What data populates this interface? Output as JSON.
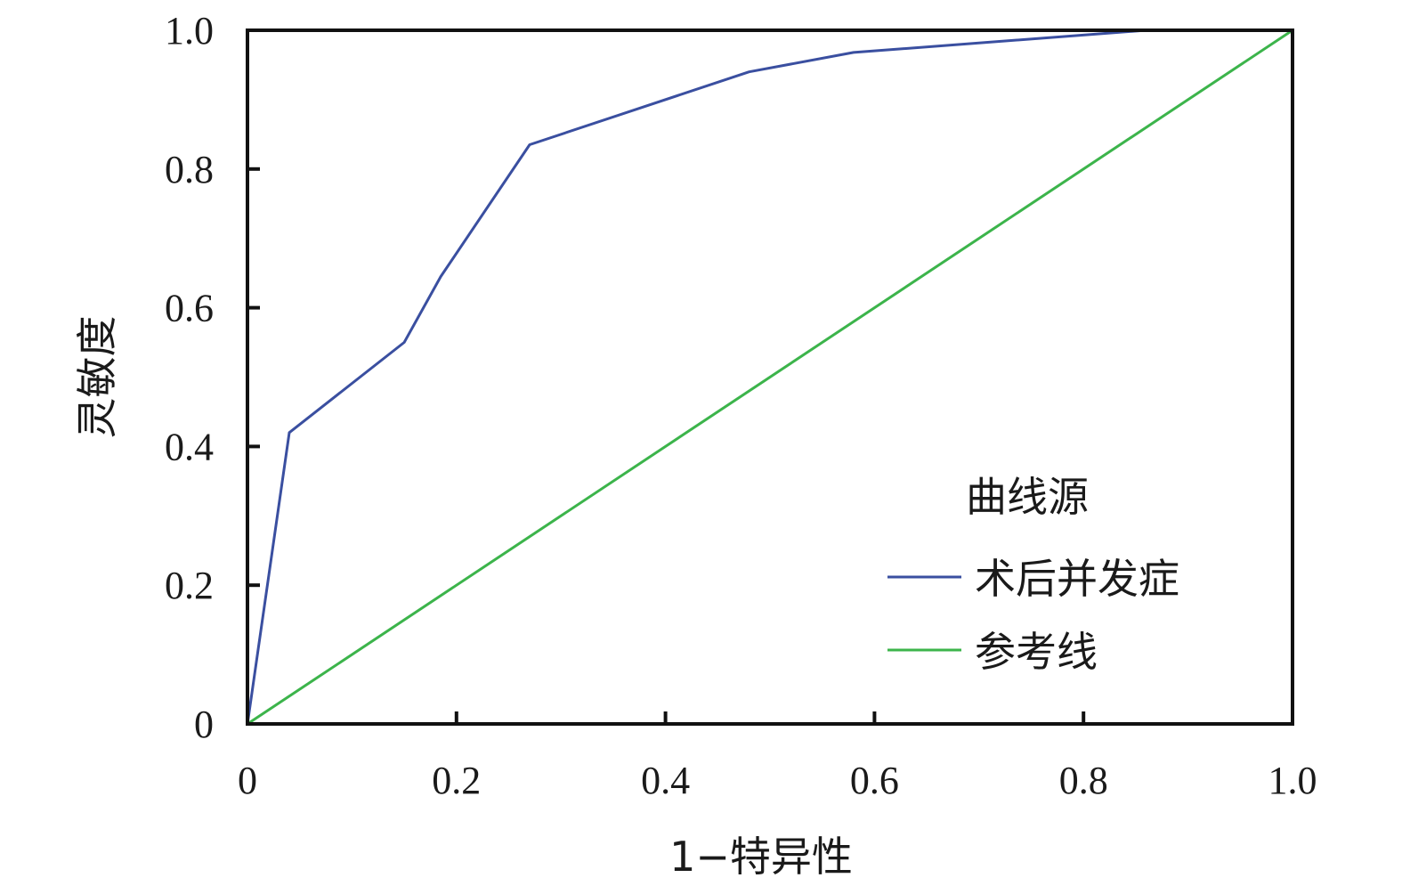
{
  "chart_data": {
    "type": "line",
    "xlabel": "1−特异性",
    "ylabel": "灵敏度",
    "xlim": [
      0,
      1
    ],
    "ylim": [
      0,
      1
    ],
    "x_ticks": [
      "0",
      "0.2",
      "0.4",
      "0.6",
      "0.8",
      "1.0"
    ],
    "y_ticks": [
      "0",
      "0.2",
      "0.4",
      "0.6",
      "0.8",
      "1.0"
    ],
    "grid": false,
    "legend": {
      "title": "曲线源",
      "position": "bottom-right"
    },
    "series": [
      {
        "name": "术后并发症",
        "color": "#3a4fa0",
        "points": [
          [
            0,
            0
          ],
          [
            0.04,
            0.42
          ],
          [
            0.15,
            0.55
          ],
          [
            0.185,
            0.645
          ],
          [
            0.27,
            0.835
          ],
          [
            0.48,
            0.94
          ],
          [
            0.58,
            0.968
          ],
          [
            0.86,
            1.0
          ],
          [
            1.0,
            1.0
          ]
        ]
      },
      {
        "name": "参考线",
        "color": "#3cb44b",
        "points": [
          [
            0,
            0
          ],
          [
            1,
            1
          ]
        ]
      }
    ]
  }
}
